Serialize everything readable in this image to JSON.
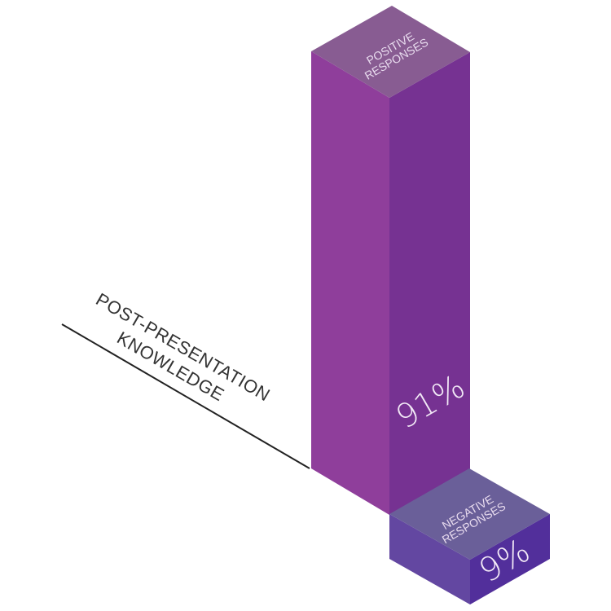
{
  "chart_data": {
    "type": "bar",
    "title": "",
    "category_label_lines": [
      "POST-PRESENTATION",
      "KNOWLEDGE"
    ],
    "categories": [
      "POSITIVE RESPONSES",
      "NEGATIVE RESPONSES"
    ],
    "values": [
      91,
      9
    ],
    "value_labels": [
      "91%",
      "9%"
    ],
    "unit": "%",
    "ylim": [
      0,
      100
    ],
    "grid": false,
    "legend": "none",
    "colors": {
      "positive_front": "#8f3e9b",
      "positive_side": "#763292",
      "positive_top": "#885c92",
      "negative_front": "#6347a1",
      "negative_side": "#522f9b",
      "negative_top": "#6a5f99"
    }
  }
}
